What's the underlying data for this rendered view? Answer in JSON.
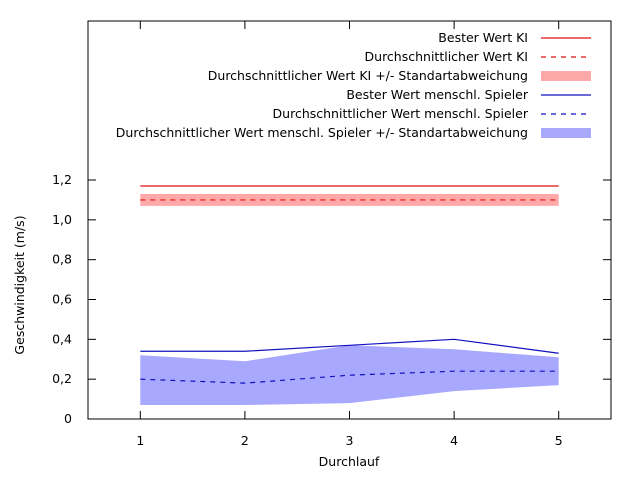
{
  "chart_data": {
    "type": "line",
    "title": "",
    "xlabel": "Durchlauf",
    "ylabel": "Geschwindigkeit (m/s)",
    "x": [
      1,
      2,
      3,
      4,
      5
    ],
    "x_ticks": [
      "1",
      "2",
      "3",
      "4",
      "5"
    ],
    "xlim": [
      0.5,
      5.5
    ],
    "ylim": [
      0,
      1.2
    ],
    "y_ticks": [
      "0",
      "0,2",
      "0,4",
      "0,6",
      "0,8",
      "1,0",
      "1,2"
    ],
    "grid": false,
    "legend_position": "top-right",
    "series": [
      {
        "name": "Bester Wert KI",
        "kind": "line",
        "style": "solid",
        "color": "#e01010",
        "values": [
          1.17,
          1.17,
          1.17,
          1.17,
          1.17
        ]
      },
      {
        "name": "Durchschnittlicher Wert KI",
        "kind": "line",
        "style": "dashed",
        "color": "#e01010",
        "values": [
          1.1,
          1.1,
          1.1,
          1.1,
          1.1
        ]
      },
      {
        "name": "Durchschnittlicher Wert KI +/- Standartabweichung",
        "kind": "band",
        "color": "#ffa8a8",
        "lower": [
          1.07,
          1.07,
          1.07,
          1.07,
          1.07
        ],
        "upper": [
          1.13,
          1.13,
          1.13,
          1.13,
          1.13
        ]
      },
      {
        "name": "Bester Wert menschl. Spieler",
        "kind": "line",
        "style": "solid",
        "color": "#1010c0",
        "values": [
          0.34,
          0.34,
          0.37,
          0.4,
          0.33
        ]
      },
      {
        "name": "Durchschnittlicher Wert menschl. Spieler",
        "kind": "line",
        "style": "dashed",
        "color": "#1010c0",
        "values": [
          0.2,
          0.18,
          0.22,
          0.24,
          0.24
        ]
      },
      {
        "name": "Durchschnittlicher Wert menschl. Spieler +/- Standartabweichung",
        "kind": "band",
        "color": "#a8a8ff",
        "lower": [
          0.07,
          0.07,
          0.08,
          0.14,
          0.17
        ],
        "upper": [
          0.32,
          0.29,
          0.37,
          0.35,
          0.31
        ]
      }
    ]
  }
}
